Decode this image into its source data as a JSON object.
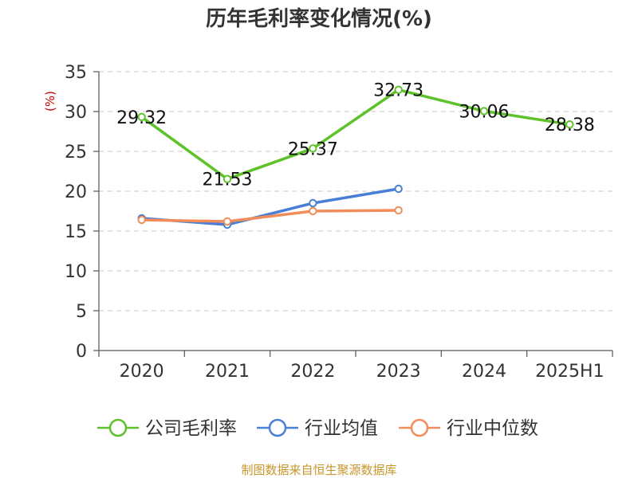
{
  "chart_data": {
    "type": "line",
    "title": "历年毛利率变化情况(%)",
    "ylabel": "(%)",
    "categories": [
      "2020",
      "2021",
      "2022",
      "2023",
      "2024",
      "2025H1"
    ],
    "ylim": [
      0,
      35
    ],
    "yticks": [
      0,
      5,
      10,
      15,
      20,
      25,
      30,
      35
    ],
    "grid": true,
    "legend_position": "bottom",
    "series": [
      {
        "name": "公司毛利率",
        "color": "#5ec22a",
        "values": [
          29.32,
          21.53,
          25.37,
          32.73,
          30.06,
          28.38
        ],
        "labels": [
          "29.32",
          "21.53",
          "25.37",
          "32.73",
          "30.06",
          "28.38"
        ]
      },
      {
        "name": "行业均值",
        "color": "#4a7fd6",
        "values": [
          16.6,
          15.8,
          18.5,
          20.3,
          null,
          null
        ]
      },
      {
        "name": "行业中位数",
        "color": "#f28c5a",
        "values": [
          16.4,
          16.2,
          17.5,
          17.6,
          null,
          null
        ]
      }
    ],
    "source": "制图数据来自恒生聚源数据库"
  }
}
